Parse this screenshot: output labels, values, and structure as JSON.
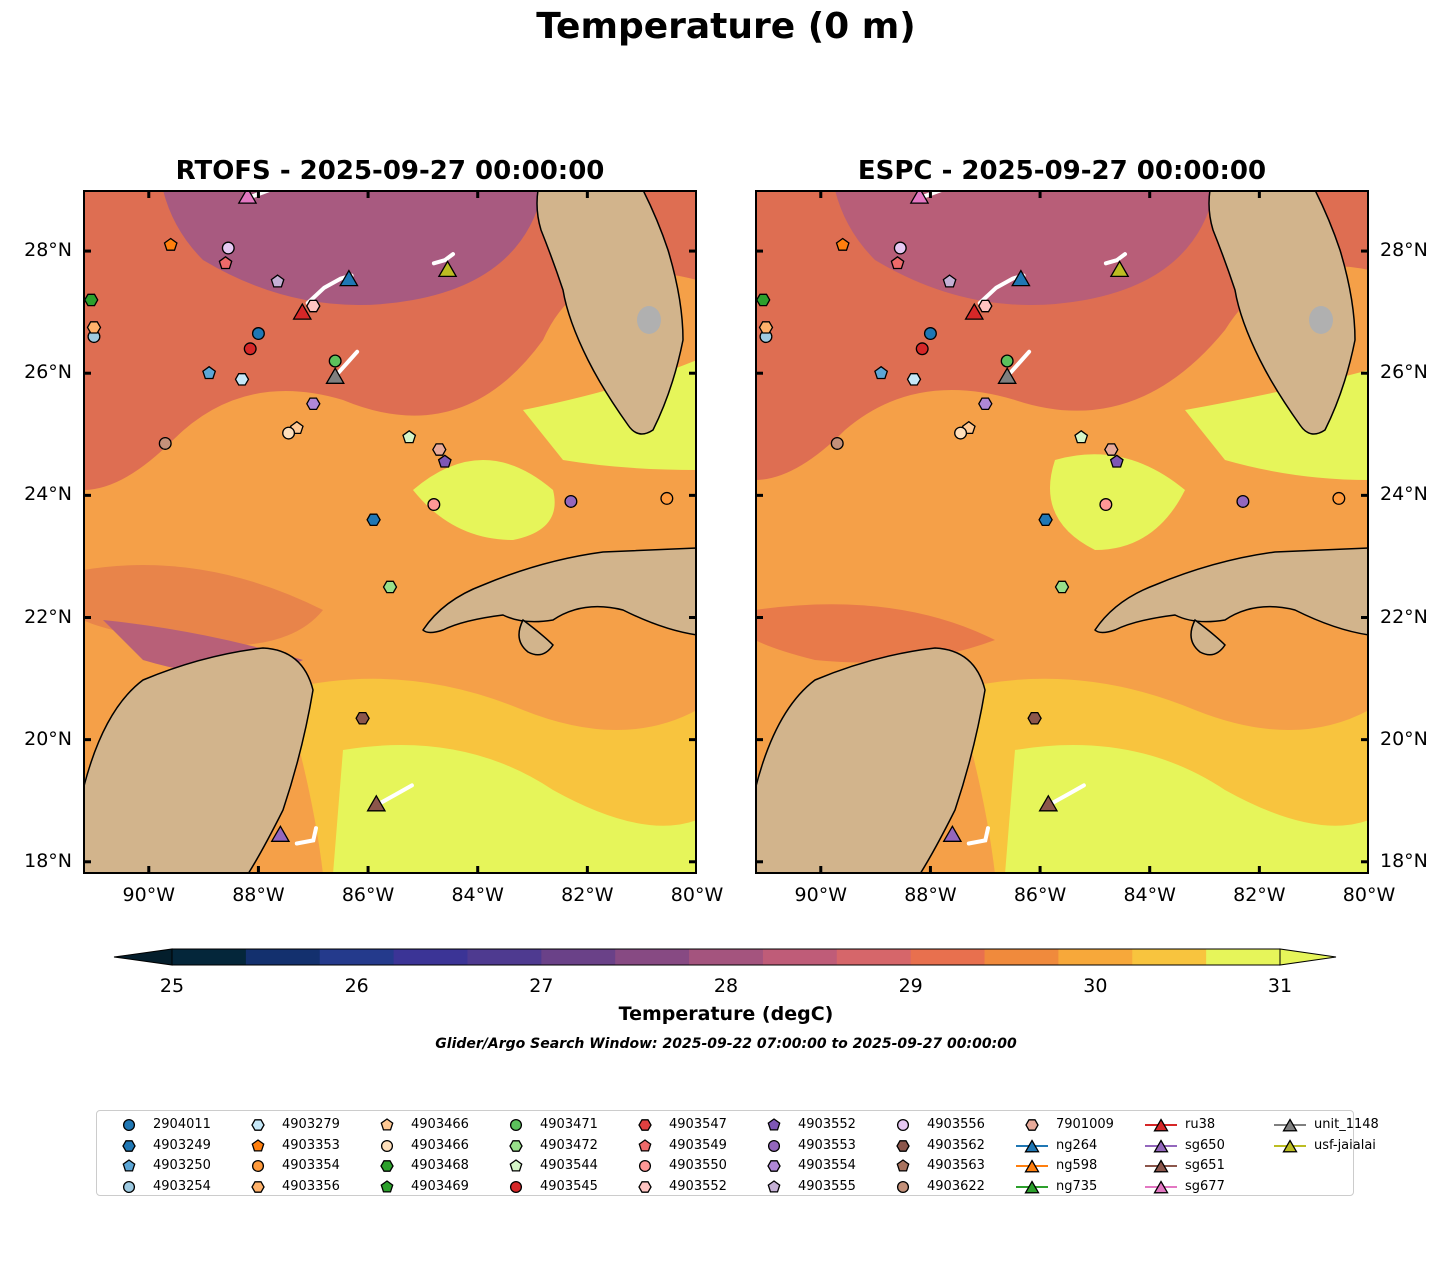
{
  "figure": {
    "title": "Temperature (0 m)",
    "search_window": "Glider/Argo Search Window: 2025-09-22 07:00:00 to 2025-09-27 00:00:00"
  },
  "panels": [
    {
      "title": "RTOFS - 2025-09-27 00:00:00"
    },
    {
      "title": "ESPC - 2025-09-27 00:00:00"
    }
  ],
  "axes": {
    "lon_labels": [
      "90°W",
      "88°W",
      "86°W",
      "84°W",
      "82°W",
      "80°W"
    ],
    "lat_labels": [
      "28°N",
      "26°N",
      "24°N",
      "22°N",
      "20°N",
      "18°N"
    ],
    "lon_values": [
      -90,
      -88,
      -86,
      -84,
      -82,
      -80
    ],
    "lat_values": [
      28,
      26,
      24,
      22,
      20,
      18
    ],
    "lon_range": [
      -91.2,
      -80
    ],
    "lat_range": [
      17.8,
      29.0
    ]
  },
  "colorbar": {
    "title": "Temperature (degC)",
    "tick_labels": [
      "25",
      "26",
      "27",
      "28",
      "29",
      "30",
      "31"
    ],
    "range": [
      25,
      31
    ],
    "colors": [
      "#04263a",
      "#13306e",
      "#243a8c",
      "#3b3496",
      "#4e3a90",
      "#6a4188",
      "#874a83",
      "#a4547e",
      "#bf5c78",
      "#d6666a",
      "#e8704e",
      "#f08a3c",
      "#f7a83a",
      "#f8c43e",
      "#e6f55a"
    ],
    "under_color": "#041e2c",
    "over_color": "#e6f55a"
  },
  "colors": {
    "land": "#d2b48c",
    "water_light": "#a8c8e8",
    "florida_lake": "#b0b0b0"
  },
  "legend": {
    "items": [
      {
        "label": "2904011",
        "marker": "circle",
        "color": "#1f77b4"
      },
      {
        "label": "4903249",
        "marker": "hexagon",
        "color": "#1f77b4"
      },
      {
        "label": "4903250",
        "marker": "pentagon",
        "color": "#5ca6d6"
      },
      {
        "label": "4903254",
        "marker": "circle",
        "color": "#9ecae1"
      },
      {
        "label": "4903279",
        "marker": "hexagon",
        "color": "#c6e8f8"
      },
      {
        "label": "4903353",
        "marker": "pentagon",
        "color": "#ff7f0e"
      },
      {
        "label": "4903354",
        "marker": "circle",
        "color": "#ff9a3c"
      },
      {
        "label": "4903356",
        "marker": "hexagon",
        "color": "#ffb26b"
      },
      {
        "label": "4903466",
        "marker": "pentagon",
        "color": "#ffc994"
      },
      {
        "label": "4903466",
        "marker": "circle",
        "color": "#ffdfbb"
      },
      {
        "label": "4903468",
        "marker": "hexagon",
        "color": "#2ca02c"
      },
      {
        "label": "4903469",
        "marker": "pentagon",
        "color": "#2ca02c"
      },
      {
        "label": "4903471",
        "marker": "circle",
        "color": "#5cc15c"
      },
      {
        "label": "4903472",
        "marker": "hexagon",
        "color": "#98df8a"
      },
      {
        "label": "4903544",
        "marker": "pentagon",
        "color": "#d5f5c8"
      },
      {
        "label": "4903545",
        "marker": "circle",
        "color": "#d62728"
      },
      {
        "label": "4903547",
        "marker": "hexagon",
        "color": "#e04040"
      },
      {
        "label": "4903549",
        "marker": "pentagon",
        "color": "#ee6a6a"
      },
      {
        "label": "4903550",
        "marker": "circle",
        "color": "#ff9896"
      },
      {
        "label": "4903552",
        "marker": "hexagon",
        "color": "#ffc4c2"
      },
      {
        "label": "4903552",
        "marker": "pentagon",
        "color": "#7e57b5"
      },
      {
        "label": "4903553",
        "marker": "circle",
        "color": "#9467bd"
      },
      {
        "label": "4903554",
        "marker": "hexagon",
        "color": "#b088d6"
      },
      {
        "label": "4903555",
        "marker": "pentagon",
        "color": "#c5b0d5"
      },
      {
        "label": "4903556",
        "marker": "circle",
        "color": "#e6c8f2"
      },
      {
        "label": "4903562",
        "marker": "hexagon",
        "color": "#8c564b"
      },
      {
        "label": "4903563",
        "marker": "pentagon",
        "color": "#a8735f"
      },
      {
        "label": "4903622",
        "marker": "circle",
        "color": "#c4917a"
      },
      {
        "label": "7901009",
        "marker": "hexagon",
        "color": "#e8aa9a"
      },
      {
        "label": "ng264",
        "marker": "triangle",
        "color": "#1f77b4",
        "line": true
      },
      {
        "label": "ng598",
        "marker": "triangle",
        "color": "#ff7f0e",
        "line": true
      },
      {
        "label": "ng735",
        "marker": "triangle",
        "color": "#2ca02c",
        "line": true
      },
      {
        "label": "ru38",
        "marker": "triangle",
        "color": "#d62728",
        "line": true
      },
      {
        "label": "sg650",
        "marker": "triangle",
        "color": "#9467bd",
        "line": true
      },
      {
        "label": "sg651",
        "marker": "triangle",
        "color": "#8c564b",
        "line": true
      },
      {
        "label": "sg677",
        "marker": "triangle",
        "color": "#e377c2",
        "line": true
      },
      {
        "label": "unit_1148",
        "marker": "triangle",
        "color": "#7f7f7f",
        "line": true
      },
      {
        "label": "usf-jaialai",
        "marker": "triangle",
        "color": "#bcbd22",
        "line": true
      }
    ]
  },
  "floats": [
    {
      "id": "2904011",
      "marker": "circle",
      "color": "#1f77b4",
      "lon": -88.0,
      "lat": 26.65
    },
    {
      "id": "4903249",
      "marker": "hexagon",
      "color": "#1f77b4",
      "lon": -85.9,
      "lat": 23.6
    },
    {
      "id": "4903250",
      "marker": "pentagon",
      "color": "#5ca6d6",
      "lon": -88.9,
      "lat": 26.0
    },
    {
      "id": "4903254",
      "marker": "circle",
      "color": "#9ecae1",
      "lon": -91.0,
      "lat": 26.6
    },
    {
      "id": "4903279",
      "marker": "hexagon",
      "color": "#c6e8f8",
      "lon": -88.3,
      "lat": 25.9
    },
    {
      "id": "4903353",
      "marker": "pentagon",
      "color": "#ff7f0e",
      "lon": -89.6,
      "lat": 28.1
    },
    {
      "id": "4903356",
      "marker": "hexagon",
      "color": "#ffb26b",
      "lon": -91.0,
      "lat": 26.75
    },
    {
      "id": "4903466",
      "marker": "pentagon",
      "color": "#ffc994",
      "lon": -87.3,
      "lat": 25.1
    },
    {
      "id": "4903466",
      "marker": "circle",
      "color": "#ffdfbb",
      "lon": -87.45,
      "lat": 25.02
    },
    {
      "id": "4903468",
      "marker": "hexagon",
      "color": "#2ca02c",
      "lon": -91.05,
      "lat": 27.2
    },
    {
      "id": "4903471",
      "marker": "circle",
      "color": "#5cc15c",
      "lon": -86.6,
      "lat": 26.2
    },
    {
      "id": "4903472",
      "marker": "hexagon",
      "color": "#98df8a",
      "lon": -85.6,
      "lat": 22.5
    },
    {
      "id": "4903544",
      "marker": "pentagon",
      "color": "#d5f5c8",
      "lon": -85.25,
      "lat": 24.95
    },
    {
      "id": "4903545",
      "marker": "circle",
      "color": "#d62728",
      "lon": -88.15,
      "lat": 26.4
    },
    {
      "id": "4903549",
      "marker": "pentagon",
      "color": "#ee6a6a",
      "lon": -88.6,
      "lat": 27.8
    },
    {
      "id": "4903550",
      "marker": "circle",
      "color": "#ff9896",
      "lon": -84.8,
      "lat": 23.85
    },
    {
      "id": "4903552",
      "marker": "hexagon",
      "color": "#ffc4c2",
      "lon": -87.0,
      "lat": 27.1
    },
    {
      "id": "4903552",
      "marker": "pentagon",
      "color": "#7e57b5",
      "lon": -84.6,
      "lat": 24.55
    },
    {
      "id": "4903553",
      "marker": "circle",
      "color": "#9467bd",
      "lon": -82.3,
      "lat": 23.9
    },
    {
      "id": "4903554",
      "marker": "hexagon",
      "color": "#b088d6",
      "lon": -87.0,
      "lat": 25.5
    },
    {
      "id": "4903555",
      "marker": "pentagon",
      "color": "#c5b0d5",
      "lon": -87.65,
      "lat": 27.5
    },
    {
      "id": "4903556",
      "marker": "circle",
      "color": "#e6c8f2",
      "lon": -88.55,
      "lat": 28.05
    },
    {
      "id": "4903562",
      "marker": "hexagon",
      "color": "#8c564b",
      "lon": -86.1,
      "lat": 20.35
    },
    {
      "id": "4903622",
      "marker": "circle",
      "color": "#c4917a",
      "lon": -89.7,
      "lat": 24.85
    },
    {
      "id": "7901009",
      "marker": "hexagon",
      "color": "#e8aa9a",
      "lon": -84.7,
      "lat": 24.75
    },
    {
      "id": "4903354",
      "marker": "circle",
      "color": "#ff9a3c",
      "lon": -80.55,
      "lat": 23.95
    }
  ],
  "gliders": [
    {
      "id": "ng264",
      "color": "#1f77b4",
      "lon": -86.35,
      "lat": 27.55,
      "track": [
        [
          -87.1,
          27.15
        ],
        [
          -86.8,
          27.4
        ],
        [
          -86.5,
          27.55
        ],
        [
          -86.3,
          27.6
        ]
      ]
    },
    {
      "id": "ru38",
      "color": "#d62728",
      "lon": -87.2,
      "lat": 27.0,
      "track": []
    },
    {
      "id": "sg650",
      "color": "#9467bd",
      "lon": -87.6,
      "lat": 18.45,
      "track": [
        [
          -87.3,
          18.3
        ],
        [
          -87.0,
          18.35
        ],
        [
          -86.95,
          18.55
        ]
      ]
    },
    {
      "id": "sg651",
      "color": "#8c564b",
      "lon": -85.85,
      "lat": 18.95,
      "track": [
        [
          -85.8,
          18.95
        ],
        [
          -85.5,
          19.1
        ],
        [
          -85.2,
          19.25
        ]
      ]
    },
    {
      "id": "sg677",
      "color": "#e377c2",
      "lon": -88.2,
      "lat": 28.9,
      "track": [
        [
          -88.1,
          28.9
        ],
        [
          -87.8,
          29.0
        ]
      ]
    },
    {
      "id": "unit_1148",
      "color": "#7f7f7f",
      "lon": -86.6,
      "lat": 25.95,
      "track": [
        [
          -86.6,
          25.95
        ],
        [
          -86.35,
          26.2
        ],
        [
          -86.2,
          26.35
        ]
      ]
    },
    {
      "id": "usf-jaialai",
      "color": "#bcbd22",
      "lon": -84.55,
      "lat": 27.7,
      "track": [
        [
          -84.8,
          27.8
        ],
        [
          -84.6,
          27.85
        ],
        [
          -84.45,
          27.95
        ]
      ]
    }
  ]
}
